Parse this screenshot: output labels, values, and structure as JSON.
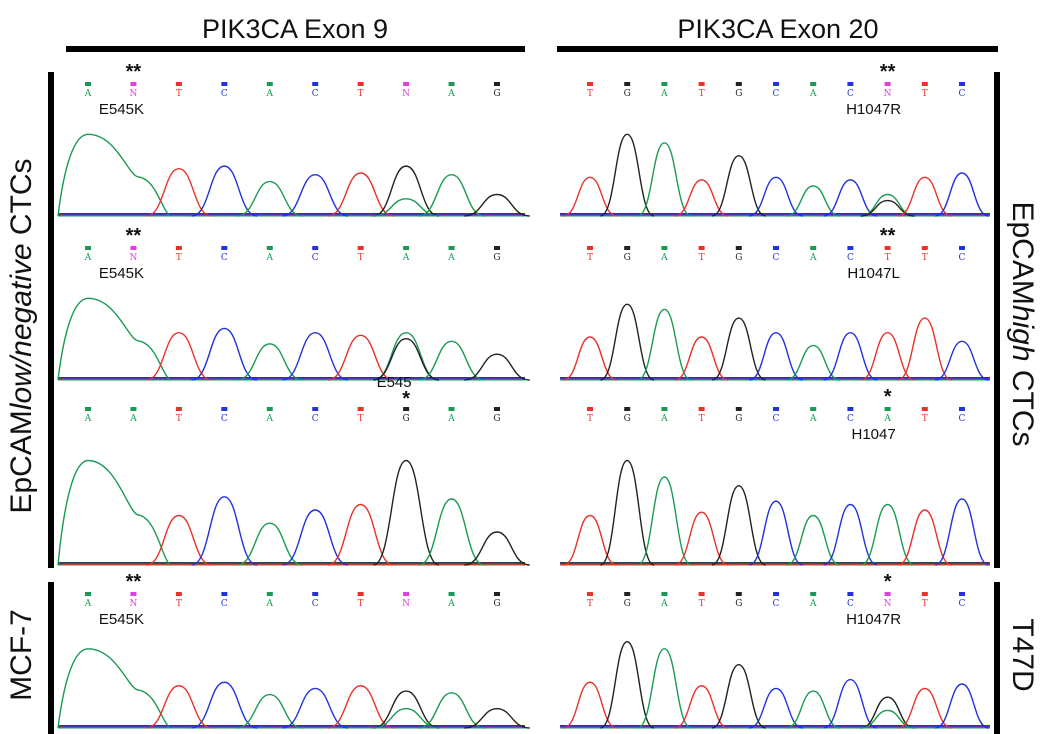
{
  "columns": [
    {
      "title": "PIK3CA Exon 9"
    },
    {
      "title": "PIK3CA Exon 20"
    }
  ],
  "row_labels": {
    "left_main_prefix": "EpCAM",
    "left_main_italic": "low/negative",
    "left_main_suffix": " CTCs",
    "left_bottom": "MCF-7",
    "right_main_prefix": "EpCAM",
    "right_main_italic": "high",
    "right_main_suffix": " CTCs",
    "right_bottom": "T47D"
  },
  "colors": {
    "A": "#1a9a55",
    "C": "#2233dd",
    "G": "#222222",
    "T": "#e8322b",
    "N": "#e040e0"
  },
  "panels": [
    {
      "col": 0,
      "row": 0,
      "bases": [
        "A",
        "N",
        "T",
        "C",
        "A",
        "C",
        "T",
        "N",
        "A",
        "G"
      ],
      "stars": "**",
      "label": "E545K",
      "label_above": false,
      "peaks": [
        {
          "c": "#1a9a55",
          "h": 0.95
        },
        {
          "c": "#1a9a55",
          "h": 0.5
        },
        {
          "c": "#e8322b",
          "h": 0.55
        },
        {
          "c": "#2233dd",
          "h": 0.58
        },
        {
          "c": "#1a9a55",
          "h": 0.4
        },
        {
          "c": "#2233dd",
          "h": 0.48
        },
        {
          "c": "#e8322b",
          "h": 0.5
        },
        {
          "c": "#222222",
          "h": 0.58,
          "c2": "#1a9a55",
          "h2": 0.2
        },
        {
          "c": "#1a9a55",
          "h": 0.48
        },
        {
          "c": "#222222",
          "h": 0.25
        }
      ]
    },
    {
      "col": 0,
      "row": 1,
      "bases": [
        "A",
        "N",
        "T",
        "C",
        "A",
        "C",
        "T",
        "A",
        "A",
        "G"
      ],
      "stars": "**",
      "label": "E545K",
      "label_above": false,
      "peaks": [
        {
          "c": "#1a9a55",
          "h": 0.95
        },
        {
          "c": "#1a9a55",
          "h": 0.55
        },
        {
          "c": "#e8322b",
          "h": 0.55
        },
        {
          "c": "#2233dd",
          "h": 0.6
        },
        {
          "c": "#1a9a55",
          "h": 0.42
        },
        {
          "c": "#2233dd",
          "h": 0.55
        },
        {
          "c": "#e8322b",
          "h": 0.52
        },
        {
          "c": "#1a9a55",
          "h": 0.55,
          "c2": "#222222",
          "h2": 0.48
        },
        {
          "c": "#1a9a55",
          "h": 0.45
        },
        {
          "c": "#222222",
          "h": 0.3
        }
      ]
    },
    {
      "col": 0,
      "row": 2,
      "bases": [
        "A",
        "A",
        "T",
        "C",
        "A",
        "C",
        "T",
        "G",
        "A",
        "G"
      ],
      "stars": "*",
      "label": "E545",
      "label_above": true,
      "peaks": [
        {
          "c": "#1a9a55",
          "h": 0.95
        },
        {
          "c": "#1a9a55",
          "h": 0.42
        },
        {
          "c": "#e8322b",
          "h": 0.45
        },
        {
          "c": "#2233dd",
          "h": 0.62
        },
        {
          "c": "#1a9a55",
          "h": 0.38
        },
        {
          "c": "#2233dd",
          "h": 0.5
        },
        {
          "c": "#e8322b",
          "h": 0.55
        },
        {
          "c": "#222222",
          "h": 0.95
        },
        {
          "c": "#1a9a55",
          "h": 0.6
        },
        {
          "c": "#222222",
          "h": 0.3
        }
      ]
    },
    {
      "col": 0,
      "row": 3,
      "bases": [
        "A",
        "N",
        "T",
        "C",
        "A",
        "C",
        "T",
        "N",
        "A",
        "G"
      ],
      "stars": "**",
      "label": "E545K",
      "label_above": false,
      "peaks": [
        {
          "c": "#1a9a55",
          "h": 0.9
        },
        {
          "c": "#1a9a55",
          "h": 0.45
        },
        {
          "c": "#e8322b",
          "h": 0.48
        },
        {
          "c": "#2233dd",
          "h": 0.52
        },
        {
          "c": "#1a9a55",
          "h": 0.38
        },
        {
          "c": "#2233dd",
          "h": 0.45
        },
        {
          "c": "#e8322b",
          "h": 0.48
        },
        {
          "c": "#222222",
          "h": 0.42,
          "c2": "#1a9a55",
          "h2": 0.22
        },
        {
          "c": "#1a9a55",
          "h": 0.4
        },
        {
          "c": "#222222",
          "h": 0.22
        }
      ]
    },
    {
      "col": 1,
      "row": 0,
      "bases": [
        "T",
        "G",
        "A",
        "T",
        "G",
        "C",
        "A",
        "C",
        "N",
        "T",
        "C"
      ],
      "stars": "**",
      "label": "H1047R",
      "label_above": false,
      "peaks": [
        {
          "c": "#e8322b",
          "h": 0.45
        },
        {
          "c": "#222222",
          "h": 0.95
        },
        {
          "c": "#1a9a55",
          "h": 0.85
        },
        {
          "c": "#e8322b",
          "h": 0.42
        },
        {
          "c": "#222222",
          "h": 0.7
        },
        {
          "c": "#2233dd",
          "h": 0.45
        },
        {
          "c": "#1a9a55",
          "h": 0.35
        },
        {
          "c": "#2233dd",
          "h": 0.42
        },
        {
          "c": "#1a9a55",
          "h": 0.25,
          "c2": "#222222",
          "h2": 0.18
        },
        {
          "c": "#e8322b",
          "h": 0.45
        },
        {
          "c": "#2233dd",
          "h": 0.5
        }
      ]
    },
    {
      "col": 1,
      "row": 1,
      "bases": [
        "T",
        "G",
        "A",
        "T",
        "G",
        "C",
        "A",
        "C",
        "T",
        "T",
        "C"
      ],
      "stars": "**",
      "label": "H1047L",
      "label_above": false,
      "peaks": [
        {
          "c": "#e8322b",
          "h": 0.5
        },
        {
          "c": "#222222",
          "h": 0.88
        },
        {
          "c": "#1a9a55",
          "h": 0.82
        },
        {
          "c": "#e8322b",
          "h": 0.5
        },
        {
          "c": "#222222",
          "h": 0.72
        },
        {
          "c": "#2233dd",
          "h": 0.55
        },
        {
          "c": "#1a9a55",
          "h": 0.4
        },
        {
          "c": "#2233dd",
          "h": 0.55
        },
        {
          "c": "#e8322b",
          "h": 0.55
        },
        {
          "c": "#e8322b",
          "h": 0.72
        },
        {
          "c": "#2233dd",
          "h": 0.45
        }
      ]
    },
    {
      "col": 1,
      "row": 2,
      "bases": [
        "T",
        "G",
        "A",
        "T",
        "G",
        "C",
        "A",
        "C",
        "A",
        "T",
        "C"
      ],
      "stars": "*",
      "label": "H1047",
      "label_above": false,
      "peaks": [
        {
          "c": "#e8322b",
          "h": 0.45
        },
        {
          "c": "#222222",
          "h": 0.95
        },
        {
          "c": "#1a9a55",
          "h": 0.8
        },
        {
          "c": "#e8322b",
          "h": 0.48
        },
        {
          "c": "#222222",
          "h": 0.72
        },
        {
          "c": "#2233dd",
          "h": 0.58
        },
        {
          "c": "#1a9a55",
          "h": 0.45
        },
        {
          "c": "#2233dd",
          "h": 0.55
        },
        {
          "c": "#1a9a55",
          "h": 0.55
        },
        {
          "c": "#e8322b",
          "h": 0.5
        },
        {
          "c": "#2233dd",
          "h": 0.6
        }
      ]
    },
    {
      "col": 1,
      "row": 3,
      "bases": [
        "T",
        "G",
        "A",
        "T",
        "G",
        "C",
        "A",
        "C",
        "N",
        "T",
        "C"
      ],
      "stars": "*",
      "label": "H1047R",
      "label_above": false,
      "peaks": [
        {
          "c": "#e8322b",
          "h": 0.52
        },
        {
          "c": "#222222",
          "h": 0.98
        },
        {
          "c": "#1a9a55",
          "h": 0.9
        },
        {
          "c": "#e8322b",
          "h": 0.48
        },
        {
          "c": "#222222",
          "h": 0.72
        },
        {
          "c": "#2233dd",
          "h": 0.45
        },
        {
          "c": "#1a9a55",
          "h": 0.42
        },
        {
          "c": "#2233dd",
          "h": 0.55
        },
        {
          "c": "#222222",
          "h": 0.35,
          "c2": "#1a9a55",
          "h2": 0.2
        },
        {
          "c": "#e8322b",
          "h": 0.45
        },
        {
          "c": "#2233dd",
          "h": 0.5
        }
      ]
    }
  ]
}
